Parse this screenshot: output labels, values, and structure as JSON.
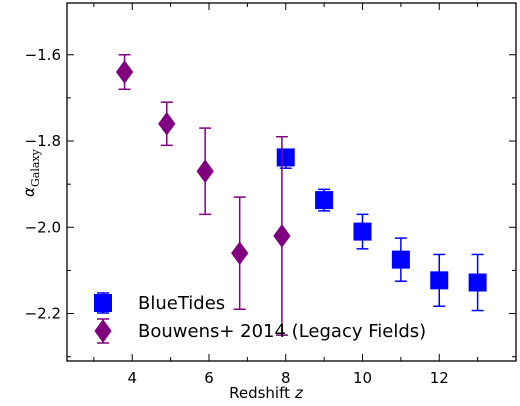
{
  "chart_data": {
    "type": "scatter",
    "xlabel": "Redshift",
    "xlabel_var": "z",
    "ylabel_main": "α",
    "ylabel_sub": "Galaxy",
    "xlim": [
      2.3,
      14.0
    ],
    "ylim": [
      -2.31,
      -1.48
    ],
    "xticks": [
      4,
      6,
      8,
      10,
      12
    ],
    "xtick_labels": [
      "4",
      "6",
      "8",
      "10",
      "12"
    ],
    "yticks": [
      -1.6,
      -1.8,
      -2.0,
      -2.2
    ],
    "ytick_labels": [
      "−1.6",
      "−1.8",
      "−2.0",
      "−2.2"
    ],
    "grid": false,
    "legend_position": "lower-left",
    "series": [
      {
        "name": "BlueTides",
        "marker": "square",
        "color": "#0000ff",
        "points": [
          {
            "x": 8,
            "y": -1.838,
            "yerr_lo": 0.025,
            "yerr_hi": 0.01
          },
          {
            "x": 9,
            "y": -1.937,
            "yerr_lo": 0.025,
            "yerr_hi": 0.025
          },
          {
            "x": 10,
            "y": -2.01,
            "yerr_lo": 0.04,
            "yerr_hi": 0.04
          },
          {
            "x": 11,
            "y": -2.075,
            "yerr_lo": 0.05,
            "yerr_hi": 0.05
          },
          {
            "x": 12,
            "y": -2.123,
            "yerr_lo": 0.06,
            "yerr_hi": 0.06
          },
          {
            "x": 13,
            "y": -2.128,
            "yerr_lo": 0.065,
            "yerr_hi": 0.065
          }
        ]
      },
      {
        "name": "Bouwens+ 2014 (Legacy Fields)",
        "marker": "diamond",
        "color": "#800080",
        "points": [
          {
            "x": 3.8,
            "y": -1.64,
            "yerr_lo": 0.04,
            "yerr_hi": 0.04
          },
          {
            "x": 4.9,
            "y": -1.76,
            "yerr_lo": 0.05,
            "yerr_hi": 0.05
          },
          {
            "x": 5.9,
            "y": -1.87,
            "yerr_lo": 0.1,
            "yerr_hi": 0.1
          },
          {
            "x": 6.8,
            "y": -2.06,
            "yerr_lo": 0.13,
            "yerr_hi": 0.13
          },
          {
            "x": 7.9,
            "y": -2.02,
            "yerr_lo": 0.23,
            "yerr_hi": 0.23
          }
        ]
      }
    ]
  }
}
